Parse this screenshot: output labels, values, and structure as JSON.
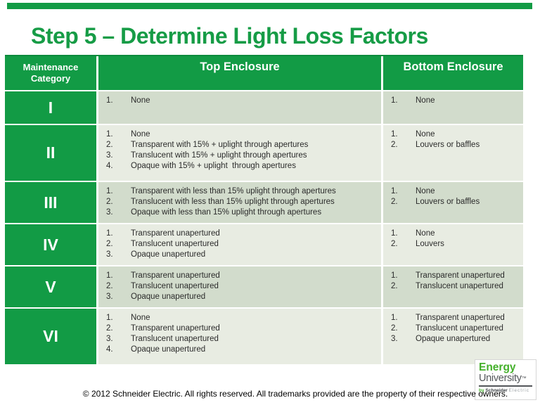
{
  "slide": {
    "title": "Step 5 – Determine Light Loss Factors",
    "footer": "© 2012 Schneider Electric. All rights reserved. All trademarks provided are the property of their respective owners."
  },
  "colors": {
    "brand_green": "#129b45",
    "title_green": "#169c46",
    "row_shade_dark": "#d2dccc",
    "row_shade_light": "#e8ece2",
    "logo_green": "#43b02a",
    "logo_gray": "#53565a"
  },
  "table": {
    "headers": {
      "category": "Maintenance Category",
      "top": "Top Enclosure",
      "bottom": "Bottom Enclosure"
    },
    "rows": [
      {
        "category": "I",
        "top": [
          "None"
        ],
        "bottom": [
          "None"
        ]
      },
      {
        "category": "II",
        "top": [
          "None",
          "Transparent with 15% + uplight through apertures",
          "Translucent with 15% + uplight through apertures",
          "Opaque with 15% + uplight  through apertures"
        ],
        "bottom": [
          "None",
          "Louvers or baffles"
        ]
      },
      {
        "category": "III",
        "top": [
          "Transparent with less than 15% uplight through apertures",
          "Translucent with less than 15% uplight through apertures",
          "Opaque with less than 15% uplight through apertures"
        ],
        "bottom": [
          "None",
          "Louvers or baffles"
        ]
      },
      {
        "category": "IV",
        "top": [
          "Transparent unapertured",
          "Translucent unapertured",
          "Opaque unapertured"
        ],
        "bottom": [
          "None",
          "Louvers"
        ]
      },
      {
        "category": "V",
        "top": [
          "Transparent unapertured",
          "Translucent unapertured",
          "Opaque unapertured"
        ],
        "bottom": [
          "Transparent unapertured",
          "Translucent unapertured"
        ]
      },
      {
        "category": "VI",
        "top": [
          "None",
          "Transparent unapertured",
          "Translucent unapertured",
          "Opaque unapertured"
        ],
        "bottom": [
          "Transparent unapertured",
          "Translucent unapertured",
          "Opaque unapertured"
        ]
      }
    ]
  },
  "logo": {
    "line1": "Energy",
    "line2": "University",
    "trademark": "™",
    "by": "by",
    "brand": "Schneider",
    "suffix": "Electric"
  }
}
